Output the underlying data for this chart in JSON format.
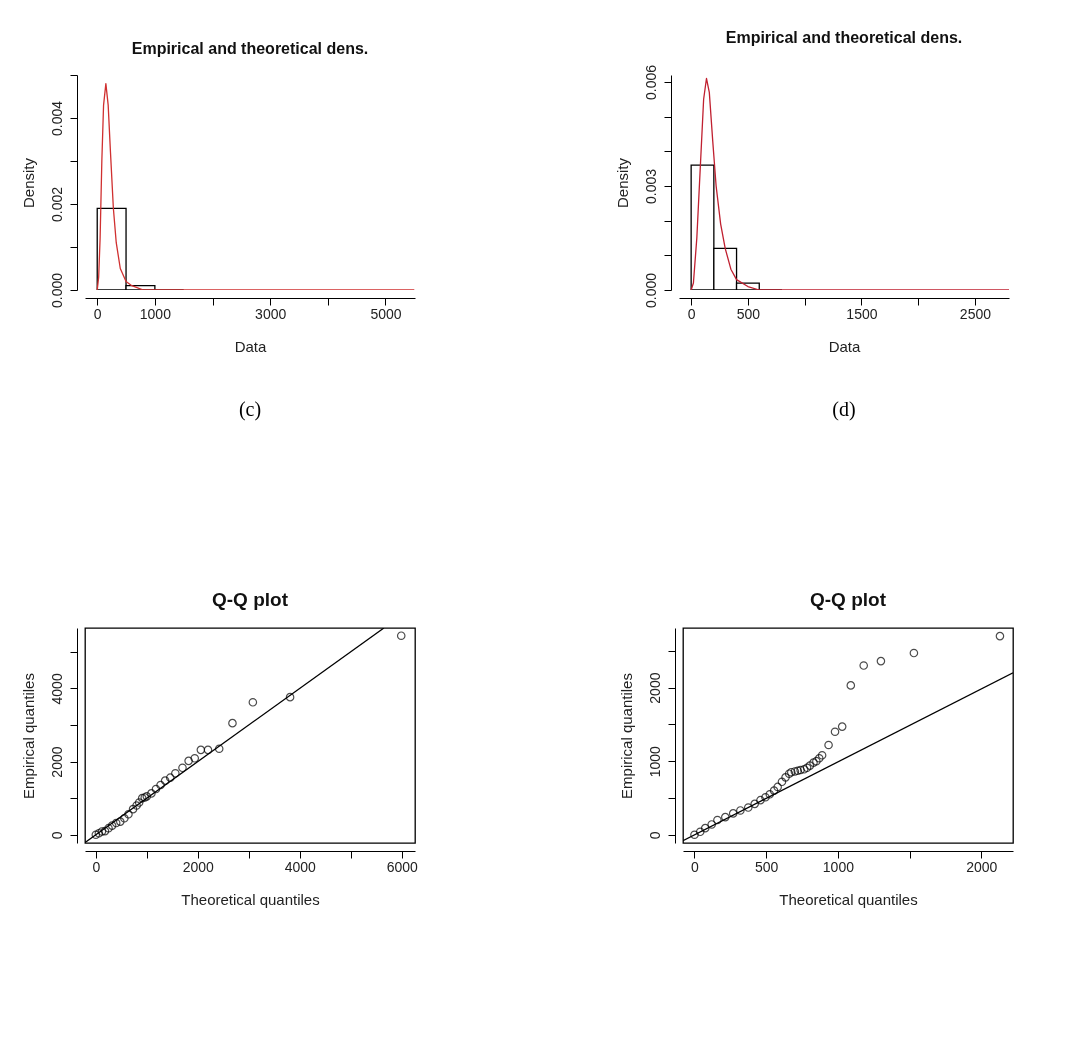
{
  "chart_data": [
    {
      "type": "histogram",
      "title": "Empirical and theoretical dens.",
      "xlabel": "Data",
      "ylabel": "Density",
      "bins": [
        0,
        500,
        1000,
        1500
      ],
      "values": [
        0.0019,
        0.0001,
        0
      ],
      "color": "#000000",
      "xlim": [
        -212,
        5512
      ],
      "ylim": [
        0,
        0.005
      ],
      "xticks": [
        0,
        1000,
        {
          "value": 2000,
          "label": null
        },
        3000,
        {
          "value": 4000,
          "label": null
        },
        5000
      ],
      "yticks": [
        {
          "value": 0,
          "label": "0.000"
        },
        {
          "value": 0.001,
          "label": null
        },
        0.002,
        {
          "value": 0.003,
          "label": null
        },
        0.004,
        {
          "value": 0.005,
          "label": null
        }
      ],
      "annotations": [
        "(c)"
      ],
      "series": [
        {
          "type": "line",
          "color": "#d03030",
          "x": [
            0,
            25,
            50,
            80,
            110,
            150,
            190,
            230,
            280,
            330,
            400,
            500,
            600,
            800,
            1000,
            1500,
            5500
          ],
          "values": [
            0,
            0.0003,
            0.0012,
            0.003,
            0.0043,
            0.0048,
            0.0043,
            0.0032,
            0.0019,
            0.0011,
            0.0005,
            0.0002,
            0.0001,
            0,
            0,
            0,
            0
          ]
        }
      ]
    },
    {
      "type": "histogram",
      "title": "Empirical and theoretical dens.",
      "xlabel": "Data",
      "ylabel": "Density",
      "bins": [
        0,
        200,
        400,
        600,
        800
      ],
      "values": [
        0.0036,
        0.0012,
        0.0002,
        0
      ],
      "color": "#000000",
      "xlim": [
        -107,
        2800
      ],
      "ylim": [
        0,
        0.0062
      ],
      "xticks": [
        0,
        500,
        {
          "value": 1000,
          "label": null
        },
        1500,
        {
          "value": 2000,
          "label": null
        },
        2500
      ],
      "yticks": [
        {
          "value": 0,
          "label": "0.000"
        },
        {
          "value": 0.001,
          "label": null
        },
        {
          "value": 0.002,
          "label": null
        },
        0.003,
        {
          "value": 0.004,
          "label": null
        },
        {
          "value": 0.005,
          "label": null
        },
        0.006
      ],
      "annotations": [
        "(d)"
      ],
      "series": [
        {
          "type": "line",
          "color": "#c02030",
          "x": [
            0,
            20,
            50,
            80,
            110,
            135,
            160,
            190,
            220,
            260,
            300,
            350,
            400,
            500,
            600,
            800,
            1000,
            2800
          ],
          "values": [
            0,
            0.0002,
            0.0015,
            0.0035,
            0.0055,
            0.0061,
            0.0057,
            0.0043,
            0.003,
            0.0019,
            0.0012,
            0.0006,
            0.0003,
            0.0001,
            0,
            0,
            0,
            0
          ]
        }
      ]
    },
    {
      "type": "scatter",
      "title": "Q-Q plot",
      "xlabel": "Theoretical quantiles",
      "ylabel": "Empirical quantiles",
      "xlim": [
        -212,
        6260
      ],
      "ylim": [
        -225,
        5650
      ],
      "xticks": [
        0,
        {
          "value": 1000,
          "label": null
        },
        2000,
        {
          "value": 3000,
          "label": null
        },
        4000,
        {
          "value": 5000,
          "label": null
        },
        6000
      ],
      "yticks": [
        0,
        {
          "value": 1000,
          "label": null
        },
        2000,
        {
          "value": 3000,
          "label": null
        },
        4000,
        {
          "value": 5000,
          "label": null
        }
      ],
      "series": [
        {
          "type": "scatter",
          "marker": "circle",
          "color": "#000000",
          "x": [
            0,
            60,
            120,
            180,
            250,
            320,
            400,
            480,
            560,
            640,
            730,
            800,
            850,
            910,
            960,
            1000,
            1090,
            1180,
            1270,
            1360,
            1460,
            1560,
            1700,
            1820,
            1940,
            2060,
            2200,
            2420,
            2680,
            3080,
            3810,
            5990
          ],
          "values": [
            0,
            40,
            90,
            100,
            180,
            250,
            320,
            360,
            450,
            560,
            700,
            800,
            880,
            1000,
            1020,
            1050,
            1130,
            1250,
            1360,
            1480,
            1560,
            1680,
            1830,
            2020,
            2090,
            2320,
            2320,
            2350,
            3050,
            3620,
            3760,
            5440
          ]
        },
        {
          "type": "line",
          "color": "#000000",
          "x": [
            -210,
            5650
          ],
          "values": [
            -210,
            5650
          ]
        }
      ]
    },
    {
      "type": "scatter",
      "title": "Q-Q plot",
      "xlabel": "Theoretical quantiles",
      "ylabel": "Empirical quantiles",
      "xlim": [
        -80,
        2221
      ],
      "ylim": [
        -112,
        2810
      ],
      "xticks": [
        0,
        500,
        1000,
        {
          "value": 1500,
          "label": null
        },
        2000
      ],
      "yticks": [
        0,
        {
          "value": 500,
          "label": null
        },
        1000,
        {
          "value": 1500,
          "label": null
        },
        2000,
        {
          "value": 2500,
          "label": null
        }
      ],
      "series": [
        {
          "type": "scatter",
          "marker": "circle",
          "color": "#000000",
          "x": [
            0,
            40,
            75,
            120,
            160,
            215,
            270,
            320,
            375,
            420,
            460,
            495,
            525,
            555,
            580,
            610,
            635,
            660,
            675,
            700,
            720,
            740,
            765,
            785,
            805,
            830,
            850,
            870,
            890,
            935,
            980,
            1030,
            1090,
            1180,
            1300,
            1530,
            2130
          ],
          "values": [
            0,
            40,
            90,
            140,
            200,
            240,
            290,
            330,
            370,
            420,
            470,
            510,
            550,
            600,
            650,
            720,
            780,
            830,
            850,
            860,
            870,
            880,
            890,
            910,
            940,
            980,
            1000,
            1040,
            1080,
            1220,
            1400,
            1470,
            2030,
            2300,
            2360,
            2470,
            2700
          ]
        },
        {
          "type": "line",
          "color": "#000000",
          "x": [
            -80,
            2221
          ],
          "values": [
            -80,
            2200
          ]
        }
      ]
    }
  ]
}
